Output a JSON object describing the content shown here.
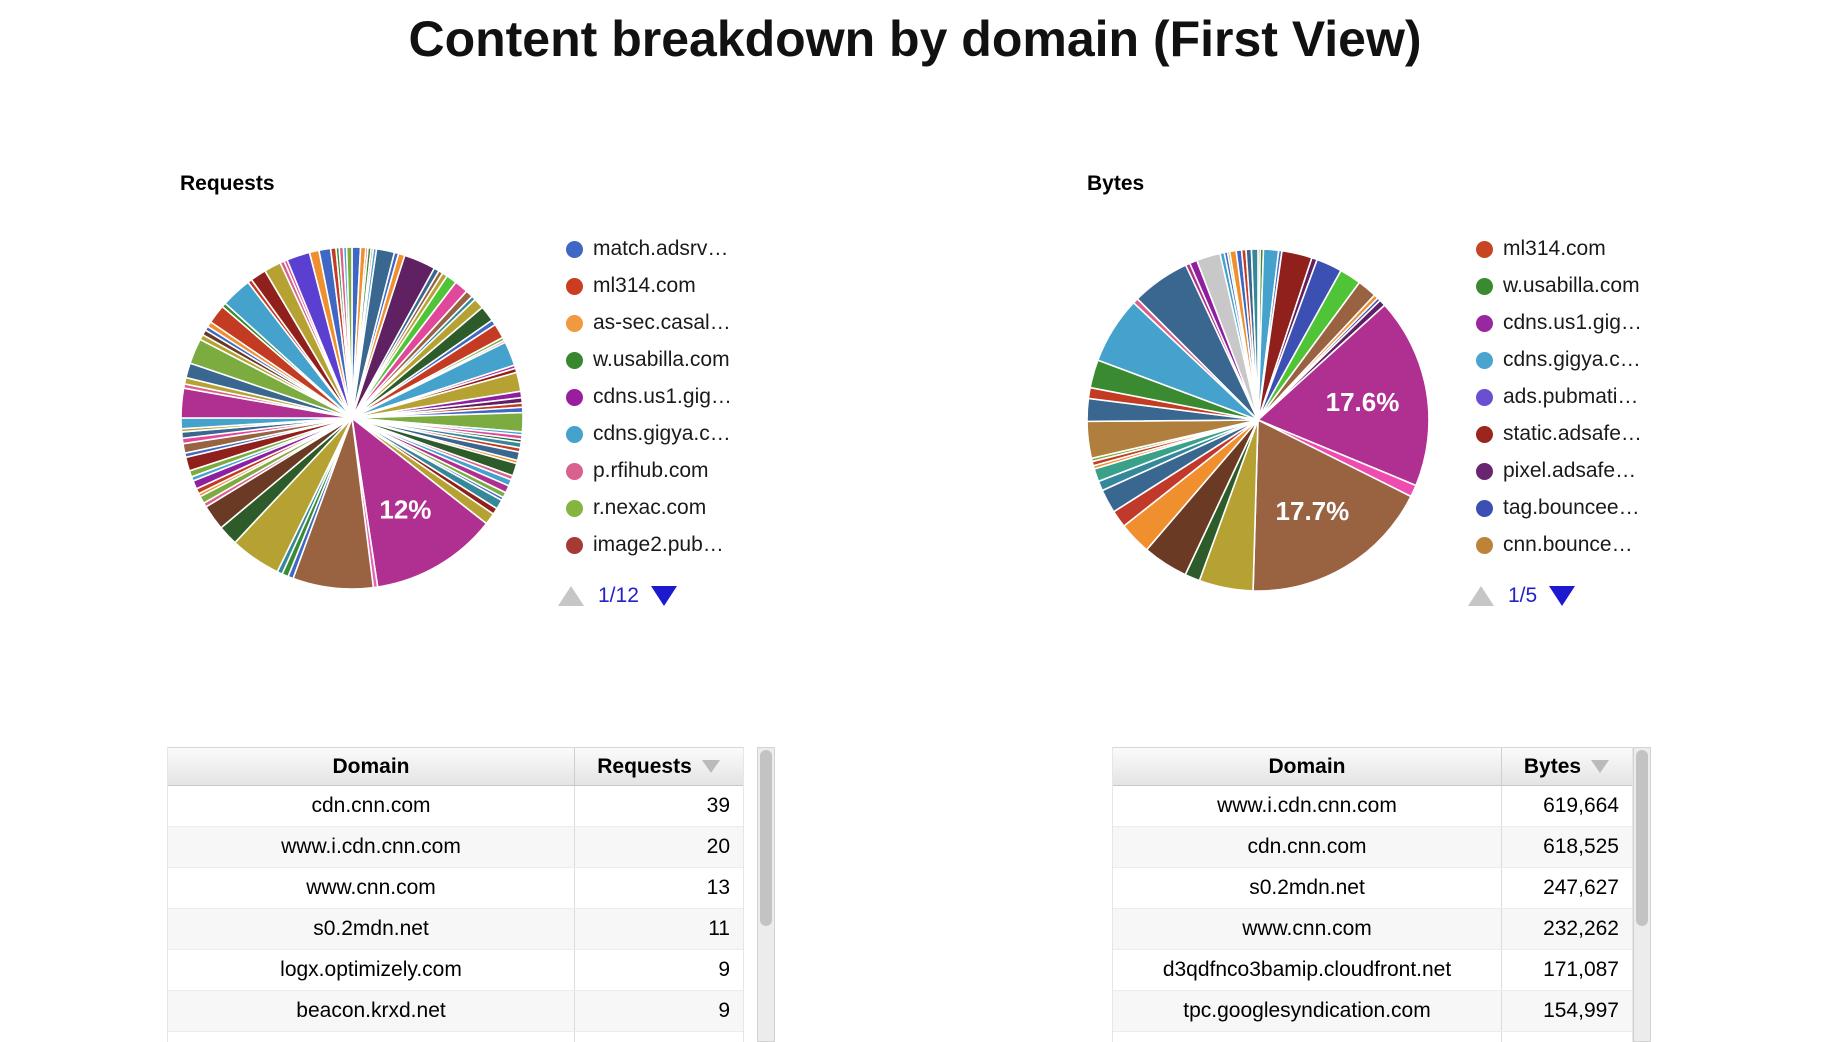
{
  "page": {
    "title": "Content breakdown by domain (First View)"
  },
  "sections": [
    {
      "heading": "Requests",
      "legend_items": [
        {
          "label": "match.adsrv…",
          "color": "#3f68c5"
        },
        {
          "label": "ml314.com",
          "color": "#cb3d21"
        },
        {
          "label": "as-sec.casal…",
          "color": "#f0993f"
        },
        {
          "label": "w.usabilla.com",
          "color": "#38872f"
        },
        {
          "label": "cdns.us1.gig…",
          "color": "#9a1d9e"
        },
        {
          "label": "cdns.gigya.c…",
          "color": "#45a2cc"
        },
        {
          "label": "p.rfihub.com",
          "color": "#d8618d"
        },
        {
          "label": "r.nexac.com",
          "color": "#85b440"
        },
        {
          "label": "image2.pub…",
          "color": "#a83a35"
        }
      ],
      "pager": {
        "page_label": "1/12",
        "up_enabled": false,
        "down_enabled": true
      }
    },
    {
      "heading": "Bytes",
      "legend_items": [
        {
          "label": "ml314.com",
          "color": "#c74523"
        },
        {
          "label": "w.usabilla.com",
          "color": "#3a8a31"
        },
        {
          "label": "cdns.us1.gig…",
          "color": "#9927a0"
        },
        {
          "label": "cdns.gigya.c…",
          "color": "#49a4cf"
        },
        {
          "label": "ads.pubmati…",
          "color": "#6a4fd0"
        },
        {
          "label": "static.adsafe…",
          "color": "#9b261d"
        },
        {
          "label": "pixel.adsafe…",
          "color": "#6a2570"
        },
        {
          "label": "tag.bouncee…",
          "color": "#3c50b4"
        },
        {
          "label": "cnn.bounce…",
          "color": "#bd8437"
        }
      ],
      "pager": {
        "page_label": "1/5",
        "up_enabled": false,
        "down_enabled": true
      }
    }
  ],
  "chart_data": [
    {
      "type": "pie",
      "title": "Requests",
      "legend_position": "right",
      "legend_page": "1/12",
      "labeled_values_pct": [
        12
      ],
      "note": "many thin unlabeled slices; only the 12% slice is labeled; slice sizes estimated from pixels",
      "slices": [
        [
          0.8,
          "#3f68c5"
        ],
        [
          0.5,
          "#ef8f2e"
        ],
        [
          0.2,
          "#c23b22"
        ],
        [
          0.3,
          "#3a8a31"
        ],
        [
          0.2,
          "#d8618d"
        ],
        [
          0.3,
          "#45a2cc"
        ],
        [
          1.7,
          "#39678f"
        ],
        [
          0.4,
          "#3f68c5"
        ],
        [
          0.6,
          "#ef8f2e"
        ],
        [
          3.0,
          "#5f2161"
        ],
        [
          0.5,
          "#39678f"
        ],
        [
          0.4,
          "#996342"
        ],
        [
          0.5,
          "#b5a233"
        ],
        [
          1.0,
          "#4fc437"
        ],
        [
          1.3,
          "#e0489c"
        ],
        [
          0.7,
          "#996342"
        ],
        [
          0.4,
          "#35889a"
        ],
        [
          1.0,
          "#b5a233"
        ],
        [
          1.5,
          "#2d5c2a"
        ],
        [
          0.5,
          "#3f68c5"
        ],
        [
          1.4,
          "#c23b22"
        ],
        [
          0.3,
          "#7cab3f"
        ],
        [
          0.2,
          "#d8618d"
        ],
        [
          2.3,
          "#45a2cc"
        ],
        [
          0.3,
          "#b03091"
        ],
        [
          0.4,
          "#8f201b"
        ],
        [
          1.8,
          "#b5a233"
        ],
        [
          0.6,
          "#8e1f9e"
        ],
        [
          0.5,
          "#5f2161"
        ],
        [
          0.4,
          "#c23b22"
        ],
        [
          0.5,
          "#3f68c5"
        ],
        [
          1.8,
          "#7cab3f"
        ],
        [
          0.3,
          "#45a2cc"
        ],
        [
          0.4,
          "#e0489c"
        ],
        [
          0.3,
          "#2d5c2a"
        ],
        [
          0.5,
          "#35889a"
        ],
        [
          0.4,
          "#c23b22"
        ],
        [
          0.8,
          "#39678f"
        ],
        [
          0.3,
          "#ef8f2e"
        ],
        [
          1.2,
          "#2d5c2a"
        ],
        [
          0.4,
          "#d8618d"
        ],
        [
          0.6,
          "#45a2cc"
        ],
        [
          0.7,
          "#b03091"
        ],
        [
          0.5,
          "#7cab3f"
        ],
        [
          0.3,
          "#3f68c5"
        ],
        [
          0.9,
          "#35889a"
        ],
        [
          0.6,
          "#8f201b"
        ],
        [
          1.1,
          "#b5a233"
        ],
        [
          12.0,
          "#b03091",
          "12%"
        ],
        [
          0.4,
          "#e860b8"
        ],
        [
          7.6,
          "#996342"
        ],
        [
          0.5,
          "#3f68c5"
        ],
        [
          0.6,
          "#3a8a31"
        ],
        [
          0.5,
          "#35889a"
        ],
        [
          4.8,
          "#b5a233"
        ],
        [
          1.9,
          "#2d5c2a"
        ],
        [
          2.4,
          "#6b3a24"
        ],
        [
          0.4,
          "#d8618d"
        ],
        [
          0.7,
          "#7cab3f"
        ],
        [
          0.3,
          "#ef8f2e"
        ],
        [
          0.5,
          "#c23b22"
        ],
        [
          0.8,
          "#8e1f9e"
        ],
        [
          0.4,
          "#45a2cc"
        ],
        [
          0.6,
          "#7cab3f"
        ],
        [
          1.3,
          "#8f201b"
        ],
        [
          0.4,
          "#3f68c5"
        ],
        [
          0.9,
          "#996342"
        ],
        [
          0.5,
          "#e0489c"
        ],
        [
          0.6,
          "#39678f"
        ],
        [
          0.3,
          "#b5a233"
        ],
        [
          1.0,
          "#45a2cc"
        ],
        [
          2.8,
          "#b03091"
        ],
        [
          0.4,
          "#d8618d"
        ],
        [
          0.6,
          "#b5a233"
        ],
        [
          1.4,
          "#39678f"
        ],
        [
          2.4,
          "#7cab3f"
        ],
        [
          0.5,
          "#b5a233"
        ],
        [
          0.5,
          "#6b3a24"
        ],
        [
          0.4,
          "#3f68c5"
        ],
        [
          0.5,
          "#ef8f2e"
        ],
        [
          1.8,
          "#c23b22"
        ],
        [
          0.4,
          "#3a8a31"
        ],
        [
          2.9,
          "#45a2cc"
        ],
        [
          0.4,
          "#c23b22"
        ],
        [
          1.5,
          "#8f201b"
        ],
        [
          1.6,
          "#b5a233"
        ],
        [
          0.4,
          "#d8618d"
        ],
        [
          0.3,
          "#e0489c"
        ],
        [
          2.2,
          "#5b3fd0"
        ],
        [
          0.9,
          "#ef8f2e"
        ],
        [
          1.1,
          "#3f68c5"
        ],
        [
          0.5,
          "#c23b22"
        ],
        [
          0.3,
          "#3a8a31"
        ],
        [
          0.4,
          "#d8618d"
        ],
        [
          0.3,
          "#45a2cc"
        ],
        [
          0.5,
          "#7cab3f"
        ]
      ]
    },
    {
      "type": "pie",
      "title": "Bytes",
      "legend_position": "right",
      "legend_page": "1/5",
      "labeled_values_pct": [
        17.6,
        17.7
      ],
      "note": "only the 17.6% and 17.7% slices are labeled; other slice sizes estimated from pixels",
      "slices": [
        [
          0.2,
          "#c23b22"
        ],
        [
          0.3,
          "#3a8a31"
        ],
        [
          1.4,
          "#45a2cc"
        ],
        [
          0.3,
          "#3f68c5"
        ],
        [
          2.8,
          "#8f201b"
        ],
        [
          0.5,
          "#5f2161"
        ],
        [
          2.4,
          "#3c50b4"
        ],
        [
          2.0,
          "#4fc437"
        ],
        [
          1.8,
          "#996342"
        ],
        [
          0.4,
          "#ef8f2e"
        ],
        [
          0.3,
          "#3c50b4"
        ],
        [
          0.6,
          "#5f2161"
        ],
        [
          17.6,
          "#b03091",
          "17.6%"
        ],
        [
          1.1,
          "#ee4cb0"
        ],
        [
          17.7,
          "#996342",
          "17.7%"
        ],
        [
          5.0,
          "#b5a233"
        ],
        [
          1.4,
          "#2d5c2a"
        ],
        [
          4.2,
          "#6b3a24"
        ],
        [
          3.0,
          "#ef8f2e"
        ],
        [
          1.6,
          "#c0392b"
        ],
        [
          2.2,
          "#39678f"
        ],
        [
          0.9,
          "#35889a"
        ],
        [
          1.2,
          "#3aa08a"
        ],
        [
          0.3,
          "#ef8f2e"
        ],
        [
          0.4,
          "#c23b22"
        ],
        [
          0.3,
          "#7cab3f"
        ],
        [
          3.4,
          "#b07f3e"
        ],
        [
          2.1,
          "#39678f"
        ],
        [
          1.0,
          "#c23b22"
        ],
        [
          2.6,
          "#3a8a31"
        ],
        [
          6.2,
          "#45a2cc"
        ],
        [
          0.5,
          "#d8618d"
        ],
        [
          5.4,
          "#39678f"
        ],
        [
          0.4,
          "#b03091"
        ],
        [
          0.7,
          "#8e1f9e"
        ],
        [
          2.2,
          "#c8c8c8"
        ],
        [
          0.4,
          "#45a2cc"
        ],
        [
          0.3,
          "#3f68c5"
        ],
        [
          0.2,
          "#4fc437"
        ],
        [
          0.6,
          "#ef8f2e"
        ],
        [
          0.5,
          "#3f68c5"
        ],
        [
          0.4,
          "#c23b22"
        ],
        [
          0.5,
          "#39678f"
        ],
        [
          0.6,
          "#35889a"
        ]
      ]
    },
    {
      "type": "table",
      "title": "Requests by domain",
      "columns": [
        "Domain",
        "Requests"
      ],
      "sorted_by": "Requests",
      "sort_direction": "desc",
      "rows": [
        [
          "cdn.cnn.com",
          "39"
        ],
        [
          "www.i.cdn.cnn.com",
          "20"
        ],
        [
          "www.cnn.com",
          "13"
        ],
        [
          "s0.2mdn.net",
          "11"
        ],
        [
          "logx.optimizely.com",
          "9"
        ],
        [
          "beacon.krxd.net",
          "9"
        ]
      ]
    },
    {
      "type": "table",
      "title": "Bytes by domain",
      "columns": [
        "Domain",
        "Bytes"
      ],
      "sorted_by": "Bytes",
      "sort_direction": "desc",
      "rows": [
        [
          "www.i.cdn.cnn.com",
          "619,664"
        ],
        [
          "cdn.cnn.com",
          "618,525"
        ],
        [
          "s0.2mdn.net",
          "247,627"
        ],
        [
          "www.cnn.com",
          "232,262"
        ],
        [
          "d3qdfnco3bamip.cloudfront.net",
          "171,087"
        ],
        [
          "tpc.googlesyndication.com",
          "154,997"
        ]
      ]
    }
  ]
}
